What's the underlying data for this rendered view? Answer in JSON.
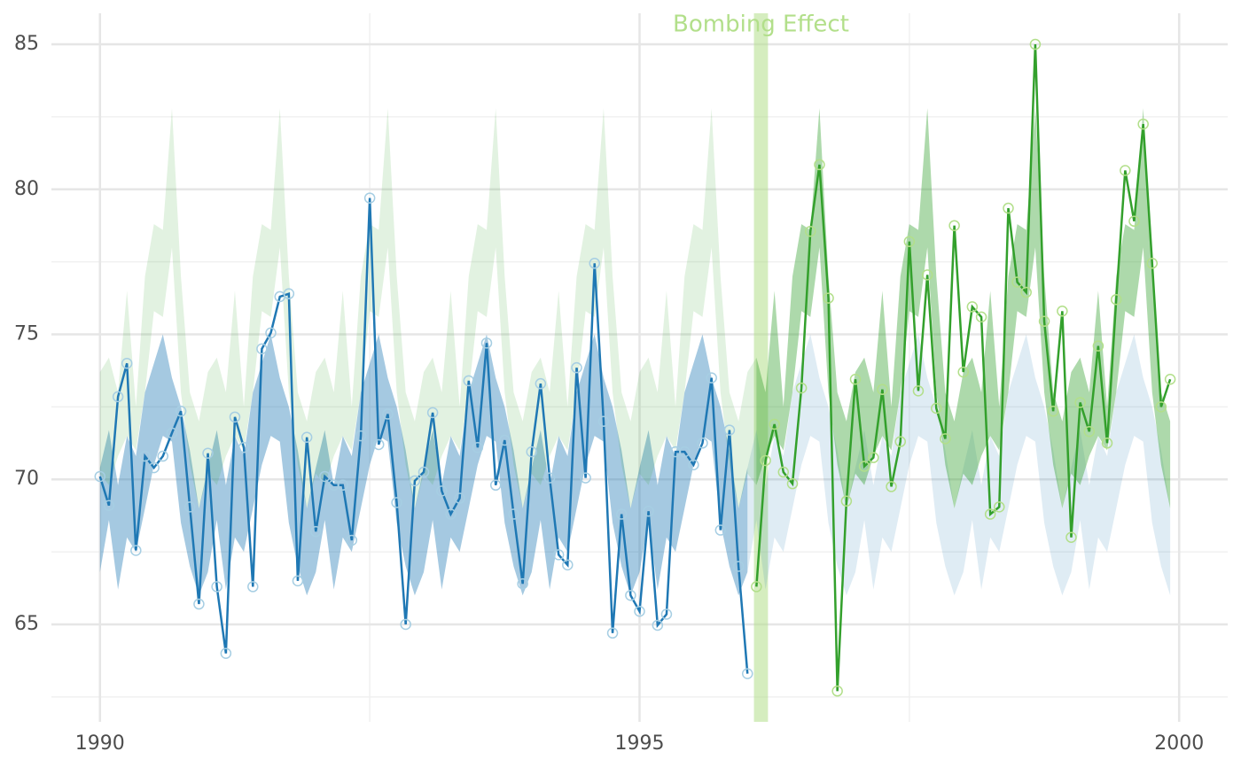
{
  "chart_data": {
    "type": "line",
    "x": [
      1990,
      1990.083,
      1990.167,
      1990.25,
      1990.333,
      1990.417,
      1990.5,
      1990.583,
      1990.667,
      1990.75,
      1990.833,
      1990.917,
      1991,
      1991.083,
      1991.167,
      1991.25,
      1991.333,
      1991.417,
      1991.5,
      1991.583,
      1991.667,
      1991.75,
      1991.833,
      1991.917,
      1992,
      1992.083,
      1992.167,
      1992.25,
      1992.333,
      1992.417,
      1992.5,
      1992.583,
      1992.667,
      1992.75,
      1992.833,
      1992.917,
      1993,
      1993.083,
      1993.167,
      1993.25,
      1993.333,
      1993.417,
      1993.5,
      1993.583,
      1993.667,
      1993.75,
      1993.833,
      1993.917,
      1994,
      1994.083,
      1994.167,
      1994.25,
      1994.333,
      1994.417,
      1994.5,
      1994.583,
      1994.667,
      1994.75,
      1994.833,
      1994.917,
      1995,
      1995.083,
      1995.167,
      1995.25,
      1995.333,
      1995.417,
      1995.5,
      1995.583,
      1995.667,
      1995.75,
      1995.833,
      1995.917,
      1996,
      1996.083,
      1996.167,
      1996.25,
      1996.333,
      1996.417,
      1996.5,
      1996.583,
      1996.667,
      1996.75,
      1996.833,
      1996.917,
      1997,
      1997.083,
      1997.167,
      1997.25,
      1997.333,
      1997.417,
      1997.5,
      1997.583,
      1997.667,
      1997.75,
      1997.833,
      1997.917,
      1998,
      1998.083,
      1998.167,
      1998.25,
      1998.333,
      1998.417,
      1998.5,
      1998.583,
      1998.667,
      1998.75,
      1998.833,
      1998.917,
      1999,
      1999.083,
      1999.167,
      1999.25,
      1999.333,
      1999.417,
      1999.5,
      1999.583,
      1999.667,
      1999.75,
      1999.833,
      1999.917
    ],
    "series": [
      {
        "color": "#1f78b4",
        "point_color": "#a6cee3",
        "values": [
          70.1,
          69.1,
          72.85,
          74.0,
          67.55,
          70.8,
          70.4,
          70.8,
          71.6,
          72.35,
          69.05,
          65.7,
          70.9,
          66.3,
          64.0,
          72.15,
          71.1,
          66.3,
          74.5,
          75.05,
          76.3,
          76.4,
          66.5,
          71.45,
          68.2,
          70.1,
          69.8,
          69.8,
          67.9,
          71.5,
          79.7,
          71.2,
          72.25,
          69.2,
          65.0,
          69.95,
          70.25,
          72.3,
          69.6,
          68.8,
          69.35,
          73.4,
          71.1,
          74.7,
          69.8,
          71.35,
          68.8,
          66.4,
          70.95,
          73.3,
          70.05,
          67.4,
          67.05,
          73.85,
          70.05,
          77.45,
          72.0,
          64.7,
          68.8,
          66.0,
          65.45,
          68.9,
          64.97,
          65.35,
          70.95,
          70.95,
          70.5,
          71.25,
          73.5,
          68.25,
          71.7,
          67.0,
          63.3,
          null,
          null,
          null,
          null,
          null,
          null,
          null,
          null,
          null,
          null,
          null,
          null,
          null,
          null,
          null,
          null,
          null,
          null,
          null,
          null,
          null,
          null,
          null,
          null,
          null,
          null,
          null,
          null,
          null,
          null,
          null,
          null,
          null,
          null,
          null,
          null,
          null,
          null,
          null,
          null,
          null,
          null,
          null,
          null,
          null,
          null,
          null
        ],
        "lower": [
          66.8,
          68.6,
          66.2,
          68.0,
          67.5,
          69.0,
          70.5,
          71.5,
          71.3,
          68.5,
          67.0,
          66.0,
          66.8,
          68.6,
          66.2,
          68.0,
          67.5,
          69.0,
          70.5,
          71.5,
          71.3,
          68.5,
          67.0,
          66.0,
          66.8,
          68.6,
          66.2,
          68.0,
          67.5,
          69.0,
          70.5,
          71.5,
          71.3,
          68.5,
          67.0,
          66.0,
          66.8,
          68.6,
          66.2,
          68.0,
          67.5,
          69.0,
          70.5,
          71.5,
          71.3,
          68.5,
          67.0,
          66.0,
          66.8,
          68.6,
          66.2,
          68.0,
          67.5,
          69.0,
          70.5,
          71.5,
          71.3,
          68.5,
          67.0,
          66.0,
          66.8,
          68.6,
          66.2,
          68.0,
          67.5,
          69.0,
          70.5,
          71.5,
          71.3,
          68.5,
          67.0,
          66.0,
          66.8,
          68.6,
          66.2,
          68.0,
          67.5,
          69.0,
          70.5,
          71.5,
          71.3,
          68.5,
          67.0,
          66.0,
          66.8,
          68.6,
          66.2,
          68.0,
          67.5,
          69.0,
          70.5,
          71.5,
          71.3,
          68.5,
          67.0,
          66.0,
          66.8,
          68.6,
          66.2,
          68.0,
          67.5,
          69.0,
          70.5,
          71.5,
          71.3,
          68.5,
          67.0,
          66.0,
          66.8,
          68.6,
          66.2,
          68.0,
          67.5,
          69.0,
          70.5,
          71.5,
          71.3,
          68.5,
          67.0,
          66.0
        ],
        "upper": [
          70.4,
          71.7,
          69.8,
          71.5,
          70.8,
          73.0,
          74.0,
          75.0,
          73.5,
          72.5,
          71.0,
          69.0,
          70.4,
          71.7,
          69.8,
          71.5,
          70.8,
          73.0,
          74.0,
          75.0,
          73.5,
          72.5,
          71.0,
          69.0,
          70.4,
          71.7,
          69.8,
          71.5,
          70.8,
          73.0,
          74.0,
          75.0,
          73.5,
          72.5,
          71.0,
          69.0,
          70.4,
          71.7,
          69.8,
          71.5,
          70.8,
          73.0,
          74.0,
          75.0,
          73.5,
          72.5,
          71.0,
          69.0,
          70.4,
          71.7,
          69.8,
          71.5,
          70.8,
          73.0,
          74.0,
          75.0,
          73.5,
          72.5,
          71.0,
          69.0,
          70.4,
          71.7,
          69.8,
          71.5,
          70.8,
          73.0,
          74.0,
          75.0,
          73.5,
          72.5,
          71.0,
          69.0,
          70.4,
          71.7,
          69.8,
          71.5,
          70.8,
          73.0,
          74.0,
          75.0,
          73.5,
          72.5,
          71.0,
          69.0,
          70.4,
          71.7,
          69.8,
          71.5,
          70.8,
          73.0,
          74.0,
          75.0,
          73.5,
          72.5,
          71.0,
          69.0,
          70.4,
          71.7,
          69.8,
          71.5,
          70.8,
          73.0,
          74.0,
          75.0,
          73.5,
          72.5,
          71.0,
          69.0,
          70.4,
          71.7,
          69.8,
          71.5,
          70.8,
          73.0,
          74.0,
          75.0,
          73.5,
          72.5,
          71.0,
          69.0
        ]
      },
      {
        "color": "#33a02c",
        "point_color": "#b2df8a",
        "values": [
          null,
          null,
          null,
          null,
          null,
          null,
          null,
          null,
          null,
          null,
          null,
          null,
          null,
          null,
          null,
          null,
          null,
          null,
          null,
          null,
          null,
          null,
          null,
          null,
          null,
          null,
          null,
          null,
          null,
          null,
          null,
          null,
          null,
          null,
          null,
          null,
          null,
          null,
          null,
          null,
          null,
          null,
          null,
          null,
          null,
          null,
          null,
          null,
          null,
          null,
          null,
          null,
          null,
          null,
          null,
          null,
          null,
          null,
          null,
          null,
          null,
          null,
          null,
          null,
          null,
          null,
          null,
          null,
          null,
          null,
          null,
          null,
          null,
          66.3,
          70.65,
          71.9,
          70.25,
          69.85,
          73.15,
          78.55,
          80.85,
          76.25,
          62.7,
          69.25,
          73.45,
          70.45,
          70.75,
          73.1,
          69.75,
          71.3,
          78.2,
          73.05,
          77.05,
          72.45,
          71.4,
          78.75,
          73.7,
          75.95,
          75.6,
          68.8,
          69.05,
          79.35,
          76.8,
          76.45,
          85.0,
          75.45,
          72.35,
          75.8,
          68.0,
          72.65,
          71.65,
          74.6,
          71.25,
          76.2,
          80.65,
          78.9,
          82.25,
          77.45,
          72.5,
          73.45
        ],
        "lower": [
          70.2,
          69.8,
          70.8,
          71.5,
          71.0,
          73.0,
          75.8,
          75.6,
          78.0,
          73.0,
          70.5,
          69.0,
          70.2,
          69.8,
          70.8,
          71.5,
          71.0,
          73.0,
          75.8,
          75.6,
          78.0,
          73.0,
          70.5,
          69.0,
          70.2,
          69.8,
          70.8,
          71.5,
          71.0,
          73.0,
          75.8,
          75.6,
          78.0,
          73.0,
          70.5,
          69.0,
          70.2,
          69.8,
          70.8,
          71.5,
          71.0,
          73.0,
          75.8,
          75.6,
          78.0,
          73.0,
          70.5,
          69.0,
          70.2,
          69.8,
          70.8,
          71.5,
          71.0,
          73.0,
          75.8,
          75.6,
          78.0,
          73.0,
          70.5,
          69.0,
          70.2,
          69.8,
          70.8,
          71.5,
          71.0,
          73.0,
          75.8,
          75.6,
          78.0,
          73.0,
          70.5,
          69.0,
          70.2,
          69.8,
          70.8,
          71.5,
          71.0,
          73.0,
          75.8,
          75.6,
          78.0,
          73.0,
          70.5,
          69.0,
          70.2,
          69.8,
          70.8,
          71.5,
          71.0,
          73.0,
          75.8,
          75.6,
          78.0,
          73.0,
          70.5,
          69.0,
          70.2,
          69.8,
          70.8,
          71.5,
          71.0,
          73.0,
          75.8,
          75.6,
          78.0,
          73.0,
          70.5,
          69.0,
          70.2,
          69.8,
          70.8,
          71.5,
          71.0,
          73.0,
          75.8,
          75.6,
          78.0,
          73.0,
          70.5,
          69.0
        ],
        "upper": [
          73.7,
          74.2,
          73.0,
          76.5,
          72.5,
          77.0,
          78.8,
          78.6,
          82.8,
          77.0,
          73.0,
          72.0,
          73.7,
          74.2,
          73.0,
          76.5,
          72.5,
          77.0,
          78.8,
          78.6,
          82.8,
          77.0,
          73.0,
          72.0,
          73.7,
          74.2,
          73.0,
          76.5,
          72.5,
          77.0,
          78.8,
          78.6,
          82.8,
          77.0,
          73.0,
          72.0,
          73.7,
          74.2,
          73.0,
          76.5,
          72.5,
          77.0,
          78.8,
          78.6,
          82.8,
          77.0,
          73.0,
          72.0,
          73.7,
          74.2,
          73.0,
          76.5,
          72.5,
          77.0,
          78.8,
          78.6,
          82.8,
          77.0,
          73.0,
          72.0,
          73.7,
          74.2,
          73.0,
          76.5,
          72.5,
          77.0,
          78.8,
          78.6,
          82.8,
          77.0,
          73.0,
          72.0,
          73.7,
          74.2,
          73.0,
          76.5,
          72.5,
          77.0,
          78.8,
          78.6,
          82.8,
          77.0,
          73.0,
          72.0,
          73.7,
          74.2,
          73.0,
          76.5,
          72.5,
          77.0,
          78.8,
          78.6,
          82.8,
          77.0,
          73.0,
          72.0,
          73.7,
          74.2,
          73.0,
          76.5,
          72.5,
          77.0,
          78.8,
          78.6,
          82.8,
          77.0,
          73.0,
          72.0,
          73.7,
          74.2,
          73.0,
          76.5,
          72.5,
          77.0,
          78.8,
          78.6,
          82.8,
          77.0,
          73.0,
          72.0
        ]
      }
    ],
    "annotation": {
      "text": "Bombing Effect",
      "x": [
        1996.06,
        1996.19
      ],
      "color": "#b2df8a"
    },
    "xlim": [
      1989.55,
      2000.45
    ],
    "ylim": [
      61.64,
      86.07
    ],
    "xticks": [
      1990,
      1995,
      2000
    ],
    "yticks": [
      65,
      70,
      75,
      80,
      85
    ],
    "x_minor_grid": [
      1992.5,
      1997.5
    ],
    "y_minor_grid": [
      62.5,
      67.5,
      72.5,
      77.5,
      82.5
    ],
    "grid": true
  }
}
